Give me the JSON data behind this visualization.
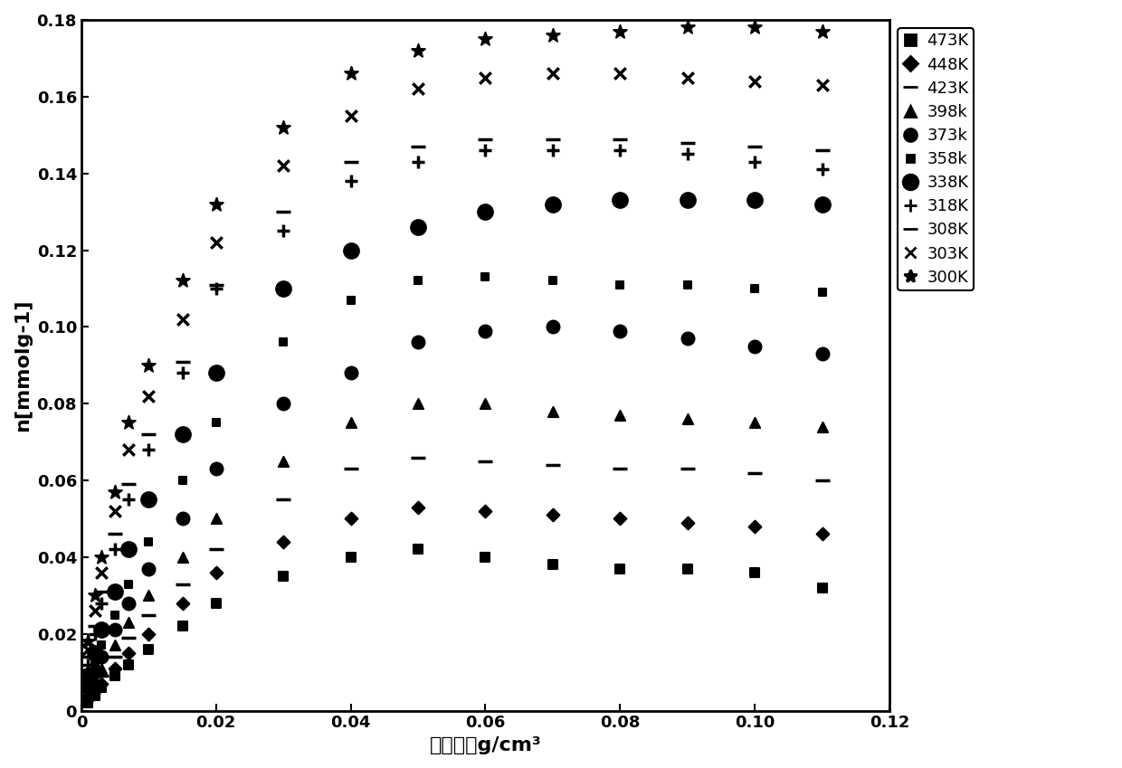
{
  "xlabel": "气体密度g/cm³",
  "ylabel": "n[mmolg-1]",
  "xlim": [
    0,
    0.12
  ],
  "ylim": [
    0,
    0.18
  ],
  "xticks": [
    0,
    0.02,
    0.04,
    0.06,
    0.08,
    0.1,
    0.12
  ],
  "yticks": [
    0,
    0.02,
    0.04,
    0.06,
    0.08,
    0.1,
    0.12,
    0.14,
    0.16,
    0.18
  ],
  "series": [
    {
      "label": "473K",
      "marker": "s",
      "color": "black",
      "ms": 8,
      "x": [
        0.001,
        0.002,
        0.003,
        0.005,
        0.007,
        0.01,
        0.015,
        0.02,
        0.03,
        0.04,
        0.05,
        0.06,
        0.07,
        0.08,
        0.09,
        0.1,
        0.11
      ],
      "y": [
        0.002,
        0.004,
        0.006,
        0.009,
        0.012,
        0.016,
        0.022,
        0.028,
        0.035,
        0.04,
        0.042,
        0.04,
        0.038,
        0.037,
        0.037,
        0.036,
        0.032
      ]
    },
    {
      "label": "448K",
      "marker": "D",
      "color": "black",
      "ms": 8,
      "x": [
        0.001,
        0.002,
        0.003,
        0.005,
        0.007,
        0.01,
        0.015,
        0.02,
        0.03,
        0.04,
        0.05,
        0.06,
        0.07,
        0.08,
        0.09,
        0.1,
        0.11
      ],
      "y": [
        0.003,
        0.005,
        0.007,
        0.011,
        0.015,
        0.02,
        0.028,
        0.036,
        0.044,
        0.05,
        0.053,
        0.052,
        0.051,
        0.05,
        0.049,
        0.048,
        0.046
      ]
    },
    {
      "label": "423K",
      "marker": "_",
      "color": "black",
      "ms": 10,
      "x": [
        0.001,
        0.002,
        0.003,
        0.005,
        0.007,
        0.01,
        0.015,
        0.02,
        0.03,
        0.04,
        0.05,
        0.06,
        0.07,
        0.08,
        0.09,
        0.1,
        0.11
      ],
      "y": [
        0.004,
        0.006,
        0.009,
        0.014,
        0.019,
        0.025,
        0.033,
        0.042,
        0.055,
        0.063,
        0.066,
        0.065,
        0.064,
        0.063,
        0.063,
        0.062,
        0.06
      ]
    },
    {
      "label": "398k",
      "marker": "^",
      "color": "black",
      "ms": 9,
      "x": [
        0.001,
        0.002,
        0.003,
        0.005,
        0.007,
        0.01,
        0.015,
        0.02,
        0.03,
        0.04,
        0.05,
        0.06,
        0.07,
        0.08,
        0.09,
        0.1,
        0.11
      ],
      "y": [
        0.005,
        0.008,
        0.011,
        0.017,
        0.023,
        0.03,
        0.04,
        0.05,
        0.065,
        0.075,
        0.08,
        0.08,
        0.078,
        0.077,
        0.076,
        0.075,
        0.074
      ]
    },
    {
      "label": "373k",
      "marker": "o",
      "color": "black",
      "ms": 10,
      "x": [
        0.001,
        0.002,
        0.003,
        0.005,
        0.007,
        0.01,
        0.015,
        0.02,
        0.03,
        0.04,
        0.05,
        0.06,
        0.07,
        0.08,
        0.09,
        0.1,
        0.11
      ],
      "y": [
        0.006,
        0.01,
        0.014,
        0.021,
        0.028,
        0.037,
        0.05,
        0.063,
        0.08,
        0.088,
        0.096,
        0.099,
        0.1,
        0.099,
        0.097,
        0.095,
        0.093
      ]
    },
    {
      "label": "358k",
      "marker": "s",
      "color": "black",
      "ms": 8,
      "x": [
        0.001,
        0.002,
        0.003,
        0.005,
        0.007,
        0.01,
        0.015,
        0.02,
        0.03,
        0.04,
        0.05,
        0.06,
        0.07,
        0.08,
        0.09,
        0.1,
        0.11
      ],
      "y": [
        0.007,
        0.012,
        0.017,
        0.025,
        0.033,
        0.044,
        0.06,
        0.075,
        0.096,
        0.107,
        0.112,
        0.113,
        0.112,
        0.111,
        0.111,
        0.11,
        0.109
      ]
    },
    {
      "label": "338K",
      "marker": "o",
      "color": "black",
      "ms": 12,
      "x": [
        0.001,
        0.002,
        0.003,
        0.005,
        0.007,
        0.01,
        0.015,
        0.02,
        0.03,
        0.04,
        0.05,
        0.06,
        0.07,
        0.08,
        0.09,
        0.1,
        0.11
      ],
      "y": [
        0.009,
        0.015,
        0.021,
        0.031,
        0.042,
        0.055,
        0.072,
        0.088,
        0.11,
        0.12,
        0.126,
        0.13,
        0.132,
        0.133,
        0.133,
        0.133,
        0.132
      ]
    },
    {
      "label": "318K",
      "marker": "+",
      "color": "black",
      "ms": 12,
      "x": [
        0.001,
        0.002,
        0.003,
        0.005,
        0.007,
        0.01,
        0.015,
        0.02,
        0.03,
        0.04,
        0.05,
        0.06,
        0.07,
        0.08,
        0.09,
        0.1,
        0.11
      ],
      "y": [
        0.012,
        0.02,
        0.028,
        0.042,
        0.055,
        0.068,
        0.088,
        0.11,
        0.125,
        0.138,
        0.143,
        0.146,
        0.146,
        0.146,
        0.145,
        0.143,
        0.141
      ]
    },
    {
      "label": "308K",
      "marker": "_",
      "color": "black",
      "ms": 12,
      "x": [
        0.001,
        0.002,
        0.003,
        0.005,
        0.007,
        0.01,
        0.015,
        0.02,
        0.03,
        0.04,
        0.05,
        0.06,
        0.07,
        0.08,
        0.09,
        0.1,
        0.11
      ],
      "y": [
        0.014,
        0.022,
        0.031,
        0.046,
        0.059,
        0.072,
        0.091,
        0.111,
        0.13,
        0.143,
        0.147,
        0.149,
        0.149,
        0.149,
        0.148,
        0.147,
        0.146
      ]
    },
    {
      "label": "303K",
      "marker": "x",
      "color": "black",
      "ms": 10,
      "x": [
        0.001,
        0.002,
        0.003,
        0.005,
        0.007,
        0.01,
        0.015,
        0.02,
        0.03,
        0.04,
        0.05,
        0.06,
        0.07,
        0.08,
        0.09,
        0.1,
        0.11
      ],
      "y": [
        0.016,
        0.026,
        0.036,
        0.052,
        0.068,
        0.082,
        0.102,
        0.122,
        0.142,
        0.155,
        0.162,
        0.165,
        0.166,
        0.166,
        0.165,
        0.164,
        0.163
      ]
    },
    {
      "label": "300K",
      "marker": "*",
      "color": "black",
      "ms": 10,
      "x": [
        0.001,
        0.002,
        0.003,
        0.005,
        0.007,
        0.01,
        0.015,
        0.02,
        0.03,
        0.04,
        0.05,
        0.06,
        0.07,
        0.08,
        0.09,
        0.1,
        0.11
      ],
      "y": [
        0.018,
        0.03,
        0.04,
        0.057,
        0.075,
        0.09,
        0.112,
        0.132,
        0.152,
        0.166,
        0.172,
        0.175,
        0.176,
        0.177,
        0.178,
        0.178,
        0.177
      ]
    }
  ],
  "legend_entries": [
    {
      "label": "473K",
      "marker": "s",
      "prefix": ""
    },
    {
      "label": "448K",
      "marker": "D",
      "prefix": ""
    },
    {
      "label": "423K",
      "marker": "_dash",
      "prefix": "- "
    },
    {
      "label": "398k",
      "marker": "^",
      "prefix": ""
    },
    {
      "label": "373k",
      "marker": "o",
      "prefix": ""
    },
    {
      "label": "358k",
      "marker": "s",
      "prefix": ""
    },
    {
      "label": "338K",
      "marker": "o",
      "prefix": ""
    },
    {
      "label": "318K",
      "marker": "+",
      "prefix": ""
    },
    {
      "label": "308K",
      "marker": "-",
      "prefix": ""
    },
    {
      "label": "303K",
      "marker": "x",
      "prefix": ""
    },
    {
      "label": "300K",
      "marker": "*",
      "prefix": ""
    }
  ],
  "background_color": "#ffffff",
  "font_family": "DejaVu Sans"
}
